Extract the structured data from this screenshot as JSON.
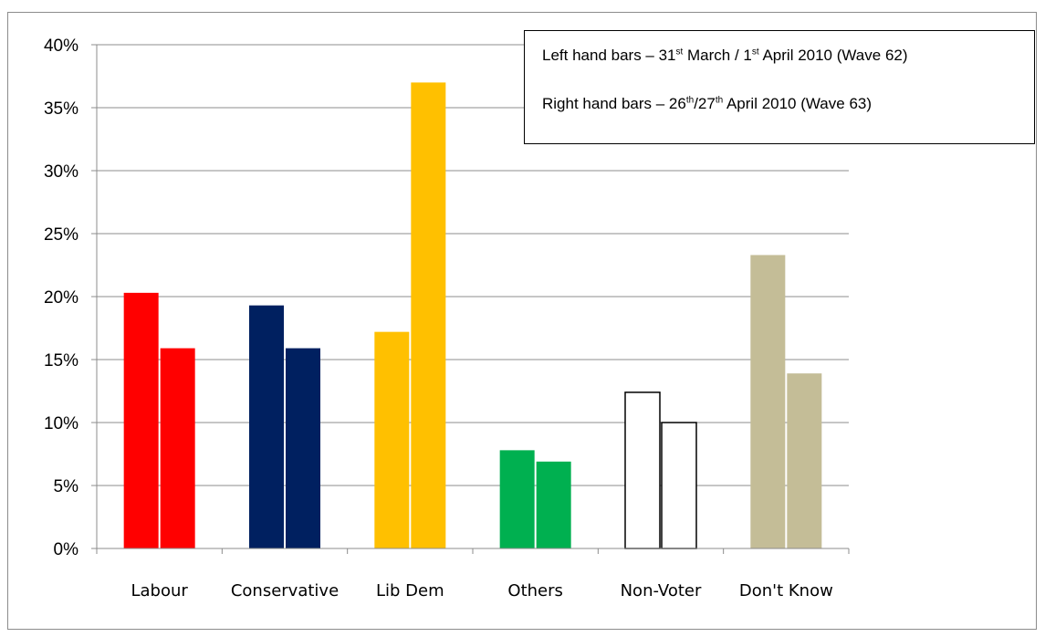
{
  "chart_data": {
    "type": "bar",
    "categories": [
      "Labour",
      "Conservative",
      "Lib Dem",
      "Others",
      "Non-Voter",
      "Don't Know"
    ],
    "series": [
      {
        "values": [
          20.3,
          19.3,
          17.2,
          7.8,
          12.4,
          23.3
        ]
      },
      {
        "values": [
          15.9,
          15.9,
          37.0,
          6.9,
          10.0,
          13.9
        ]
      }
    ],
    "bar_colors": [
      [
        "#ff0000",
        "#ff0000"
      ],
      [
        "#002060",
        "#002060"
      ],
      [
        "#ffc000",
        "#ffc000"
      ],
      [
        "#00b050",
        "#00b050"
      ],
      [
        "#ffffff",
        "#ffffff"
      ],
      [
        "#c4bd97",
        "#c4bd97"
      ]
    ],
    "ylim": [
      0,
      40
    ],
    "yticks": [
      0,
      5,
      10,
      15,
      20,
      25,
      30,
      35,
      40
    ],
    "ytick_labels": [
      "0%",
      "5%",
      "10%",
      "15%",
      "20%",
      "25%",
      "30%",
      "35%",
      "40%"
    ],
    "grid": true,
    "legend": {
      "placement": "top-right",
      "left": {
        "text1": "Left hand bars – 31",
        "sup1": "st",
        "text2": " March / 1",
        "sup2": "st",
        "text3": " April 2010 (Wave 62)"
      },
      "right": {
        "text1": "Right hand bars – 26",
        "sup1": "th",
        "text2": "/27",
        "sup2": "th",
        "text3": " April 2010 (Wave 63)"
      }
    }
  }
}
